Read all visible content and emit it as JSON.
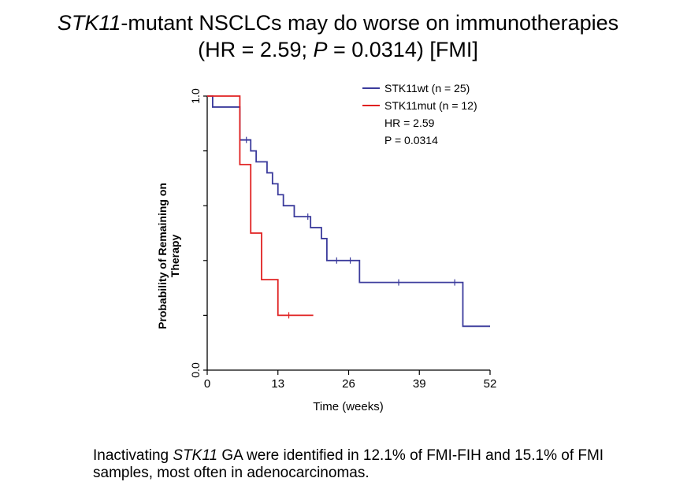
{
  "title": {
    "line1_gene": "STK11",
    "line1_rest": "-mutant NSCLCs may do worse on immunotherapies",
    "line2_pre": "(HR = 2.59; ",
    "line2_p": "P",
    "line2_post": " = 0.0314) [FMI]"
  },
  "caption": {
    "pre": "Inactivating ",
    "gene": "STK11",
    "post": " GA were identified in 12.1% of FMI-FIH and 15.1% of FMI samples, most often in adenocarcinomas."
  },
  "chart_data": {
    "type": "line",
    "xlabel": "Time (weeks)",
    "ylabel_line1": "Probability of Remaining on",
    "ylabel_line2": "Therapy",
    "xlim": [
      0,
      52
    ],
    "ylim": [
      0,
      1
    ],
    "xticks": [
      0,
      13,
      26,
      39,
      52
    ],
    "xtick_labels": [
      "0",
      "13",
      "26",
      "39",
      "52"
    ],
    "yticks": [
      0,
      0.2,
      0.4,
      0.6,
      0.8,
      1.0
    ],
    "ytick_labels": [
      "0.0",
      "",
      "",
      "",
      "",
      "1.0"
    ],
    "annotations": [
      "HR = 2.59",
      "P = 0.0314"
    ],
    "legend_position": "top-right",
    "series": [
      {
        "name": "STK11wt (n = 25)",
        "color": "#3b3b9c",
        "steps": [
          [
            0,
            1.0
          ],
          [
            1,
            0.96
          ],
          [
            6,
            0.96
          ],
          [
            6,
            0.84
          ],
          [
            8,
            0.84
          ],
          [
            8,
            0.8
          ],
          [
            9,
            0.8
          ],
          [
            9,
            0.76
          ],
          [
            11,
            0.76
          ],
          [
            11,
            0.72
          ],
          [
            12,
            0.72
          ],
          [
            12,
            0.68
          ],
          [
            13,
            0.68
          ],
          [
            13,
            0.64
          ],
          [
            14,
            0.64
          ],
          [
            14,
            0.6
          ],
          [
            16,
            0.6
          ],
          [
            16,
            0.56
          ],
          [
            19,
            0.56
          ],
          [
            19,
            0.52
          ],
          [
            21,
            0.52
          ],
          [
            21,
            0.48
          ],
          [
            22,
            0.48
          ],
          [
            22,
            0.4
          ],
          [
            28,
            0.4
          ],
          [
            28,
            0.32
          ],
          [
            47,
            0.32
          ],
          [
            47,
            0.16
          ],
          [
            52,
            0.16
          ]
        ],
        "censored": [
          [
            7.2,
            0.84
          ],
          [
            18.5,
            0.56
          ],
          [
            23.8,
            0.4
          ],
          [
            26.3,
            0.4
          ],
          [
            35.2,
            0.32
          ],
          [
            45.5,
            0.32
          ]
        ]
      },
      {
        "name": "STK11mut (n = 12)",
        "color": "#e02020",
        "steps": [
          [
            0,
            1.0
          ],
          [
            6,
            1.0
          ],
          [
            6,
            0.75
          ],
          [
            8,
            0.75
          ],
          [
            8,
            0.5
          ],
          [
            10,
            0.5
          ],
          [
            10,
            0.33
          ],
          [
            13,
            0.33
          ],
          [
            13,
            0.2
          ],
          [
            19.5,
            0.2
          ]
        ],
        "censored": [
          [
            15,
            0.2
          ]
        ]
      }
    ]
  }
}
